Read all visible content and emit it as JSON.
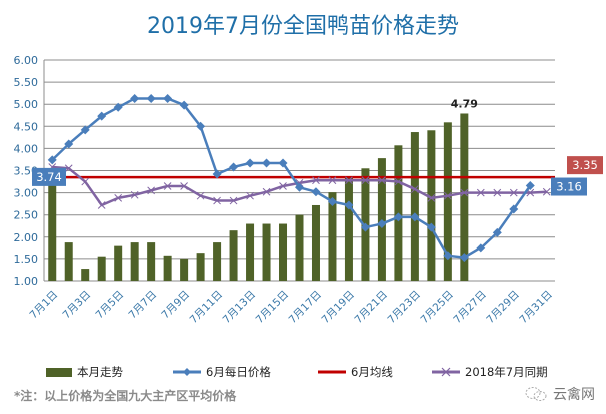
{
  "chart_data": {
    "type": "bar+line",
    "title": "2019年7月份全国鸭苗价格走势",
    "ylim": [
      1.0,
      6.0
    ],
    "yticks": [
      "1.00",
      "1.50",
      "2.00",
      "2.50",
      "3.00",
      "3.50",
      "4.00",
      "4.50",
      "5.00",
      "5.50",
      "6.00"
    ],
    "grid": true,
    "legend_position": "bottom",
    "x_labels": [
      "7月1日",
      "7月3日",
      "7月5日",
      "7月7日",
      "7月9日",
      "7月11日",
      "7月13日",
      "7月15日",
      "7月17日",
      "7月19日",
      "7月21日",
      "7月23日",
      "7月25日",
      "7月27日",
      "7月29日",
      "7月31日"
    ],
    "series": [
      {
        "name": "本月走势",
        "kind": "bar",
        "color": "#4f6228",
        "values": [
          3.3,
          1.88,
          1.27,
          1.55,
          1.8,
          1.88,
          1.88,
          1.57,
          1.5,
          1.63,
          1.88,
          2.15,
          2.3,
          2.3,
          2.3,
          2.5,
          2.72,
          3.01,
          3.33,
          3.55,
          3.78,
          4.07,
          4.37,
          4.41,
          4.59,
          4.79
        ]
      },
      {
        "name": "6月每日价格",
        "kind": "line",
        "color": "#4a7ebb",
        "marker": "diamond",
        "values": [
          3.74,
          4.1,
          4.42,
          4.73,
          4.93,
          5.13,
          5.13,
          5.13,
          4.98,
          4.5,
          3.42,
          3.58,
          3.67,
          3.67,
          3.67,
          3.12,
          3.02,
          2.8,
          2.72,
          2.22,
          2.3,
          2.45,
          2.45,
          2.22,
          1.57,
          1.53,
          1.75,
          2.1,
          2.63,
          3.16
        ]
      },
      {
        "name": "6月均线",
        "kind": "line",
        "color": "#c00000",
        "value": 3.35
      },
      {
        "name": "2018年7月同期",
        "kind": "line",
        "color": "#8064a2",
        "marker": "x",
        "values": [
          3.58,
          3.55,
          3.25,
          2.72,
          2.88,
          2.95,
          3.05,
          3.15,
          3.15,
          2.93,
          2.82,
          2.82,
          2.93,
          3.02,
          3.15,
          3.22,
          3.28,
          3.28,
          3.28,
          3.28,
          3.28,
          3.25,
          3.08,
          2.88,
          2.93,
          3.0,
          3.0,
          3.0,
          3.0,
          3.0,
          3.02
        ]
      }
    ],
    "annotations": {
      "bar_last_label": "4.79",
      "june_first_label": "3.74",
      "june_last_label": "3.16",
      "june_avg_label": "3.35"
    }
  },
  "legend": {
    "bar": "本月走势",
    "june": "6月每日价格",
    "avg": "6月均线",
    "last_year": "2018年7月同期"
  },
  "note": "*注：以上价格为全国九大主产区平均价格",
  "brand": "云禽网",
  "colors": {
    "title": "#1f6fa8",
    "bar": "#4f6228",
    "june": "#4a7ebb",
    "avg": "#c00000",
    "last_year": "#8064a2",
    "avg_label_bg": "#c0504d",
    "june_label_bg": "#4a7ebb"
  }
}
